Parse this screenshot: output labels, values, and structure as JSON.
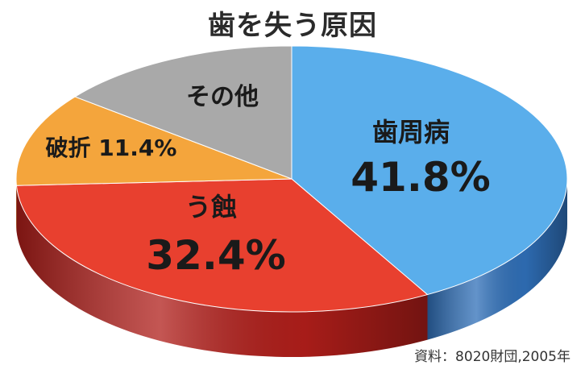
{
  "chart_data": {
    "type": "pie",
    "title": "歯を失う原因",
    "slices": [
      {
        "label": "歯周病",
        "value": 41.8,
        "value_label": "41.8%",
        "color": "#5aaeeb",
        "side_color": "#2f6fb8"
      },
      {
        "label": "う蝕",
        "value": 32.4,
        "value_label": "32.4%",
        "color": "#e8402f",
        "side_color": "#b01e1a"
      },
      {
        "label": "破折",
        "value": 11.4,
        "value_label": "11.4%",
        "color": "#f4a53c",
        "side_color": "#c0741c"
      },
      {
        "label": "その他",
        "value": 14.4,
        "value_label": "",
        "color": "#a9a9a9",
        "side_color": "#777777"
      }
    ],
    "start_angle_deg": 0,
    "direction": "clockwise",
    "style": "3d",
    "legend": "none"
  },
  "source": "資料：8020財団,2005年"
}
